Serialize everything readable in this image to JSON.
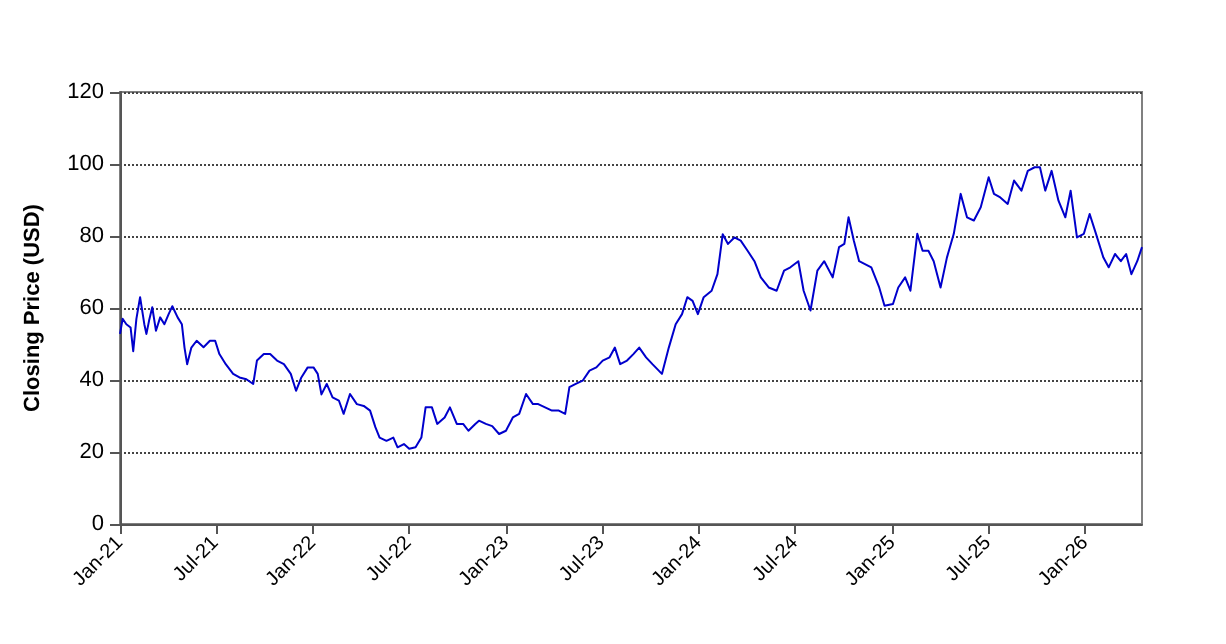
{
  "chart_data": {
    "type": "line",
    "ylabel": "Closing Price (USD)",
    "xlim": [
      "2021-01-01",
      "2026-04-18"
    ],
    "ylim": [
      0,
      120
    ],
    "yticks": [
      0,
      20,
      40,
      60,
      80,
      100,
      120
    ],
    "xticks": [
      {
        "value": "2021-01",
        "label": "Jan-21"
      },
      {
        "value": "2021-07",
        "label": "Jul-21"
      },
      {
        "value": "2022-01",
        "label": "Jan-22"
      },
      {
        "value": "2022-07",
        "label": "Jul-22"
      },
      {
        "value": "2023-01",
        "label": "Jan-23"
      },
      {
        "value": "2023-07",
        "label": "Jul-23"
      },
      {
        "value": "2024-01",
        "label": "Jan-24"
      },
      {
        "value": "2024-07",
        "label": "Jul-24"
      },
      {
        "value": "2025-01",
        "label": "Jan-25"
      },
      {
        "value": "2025-07",
        "label": "Jul-25"
      },
      {
        "value": "2026-01",
        "label": "Jan-26"
      }
    ],
    "grid": "y",
    "marker": "none",
    "line_style": "solid",
    "series": [
      {
        "color": "#0000cc",
        "x": [
          "2021-01-01",
          "2021-01-06",
          "2021-01-13",
          "2021-01-21",
          "2021-01-26",
          "2021-02-01",
          "2021-02-08",
          "2021-02-16",
          "2021-02-20",
          "2021-02-25",
          "2021-03-03",
          "2021-03-10",
          "2021-03-18",
          "2021-03-26",
          "2021-04-03",
          "2021-04-10",
          "2021-04-20",
          "2021-04-28",
          "2021-05-03",
          "2021-05-08",
          "2021-05-16",
          "2021-05-26",
          "2021-06-08",
          "2021-06-20",
          "2021-06-30",
          "2021-07-08",
          "2021-07-20",
          "2021-08-03",
          "2021-08-15",
          "2021-08-28",
          "2021-09-10",
          "2021-09-17",
          "2021-09-30",
          "2021-10-12",
          "2021-10-25",
          "2021-11-07",
          "2021-11-20",
          "2021-11-30",
          "2021-12-10",
          "2021-12-22",
          "2022-01-02",
          "2022-01-10",
          "2022-01-17",
          "2022-01-27",
          "2022-02-07",
          "2022-02-19",
          "2022-02-28",
          "2022-03-12",
          "2022-03-25",
          "2022-04-07",
          "2022-04-19",
          "2022-04-29",
          "2022-05-07",
          "2022-05-20",
          "2022-06-02",
          "2022-06-10",
          "2022-06-22",
          "2022-07-02",
          "2022-07-14",
          "2022-07-25",
          "2022-08-02",
          "2022-08-14",
          "2022-08-24",
          "2022-09-07",
          "2022-09-17",
          "2022-09-30",
          "2022-10-12",
          "2022-10-22",
          "2022-11-04",
          "2022-11-11",
          "2022-11-24",
          "2022-12-06",
          "2022-12-19",
          "2023-01-01",
          "2023-01-14",
          "2023-01-26",
          "2023-02-08",
          "2023-02-21",
          "2023-03-03",
          "2023-03-16",
          "2023-03-29",
          "2023-04-11",
          "2023-04-23",
          "2023-05-01",
          "2023-05-13",
          "2023-05-26",
          "2023-06-08",
          "2023-06-21",
          "2023-07-03",
          "2023-07-16",
          "2023-07-26",
          "2023-08-05",
          "2023-08-18",
          "2023-08-30",
          "2023-09-10",
          "2023-09-23",
          "2023-10-05",
          "2023-10-23",
          "2023-11-05",
          "2023-11-18",
          "2023-11-30",
          "2023-12-10",
          "2023-12-20",
          "2023-12-30",
          "2024-01-10",
          "2024-01-25",
          "2024-02-05",
          "2024-02-15",
          "2024-02-25",
          "2024-03-08",
          "2024-03-20",
          "2024-04-02",
          "2024-04-15",
          "2024-04-27",
          "2024-05-12",
          "2024-05-27",
          "2024-06-10",
          "2024-06-22",
          "2024-07-07",
          "2024-07-17",
          "2024-07-30",
          "2024-08-12",
          "2024-08-25",
          "2024-09-10",
          "2024-09-22",
          "2024-10-02",
          "2024-10-10",
          "2024-10-20",
          "2024-10-30",
          "2024-11-10",
          "2024-11-22",
          "2024-12-07",
          "2024-12-17",
          "2025-01-02",
          "2025-01-12",
          "2025-01-25",
          "2025-02-04",
          "2025-02-17",
          "2025-02-27",
          "2025-03-10",
          "2025-03-20",
          "2025-04-02",
          "2025-04-14",
          "2025-04-27",
          "2025-05-10",
          "2025-05-22",
          "2025-06-04",
          "2025-06-17",
          "2025-07-02",
          "2025-07-12",
          "2025-07-24",
          "2025-08-07",
          "2025-08-19",
          "2025-09-02",
          "2025-09-14",
          "2025-09-27",
          "2025-10-07",
          "2025-10-17",
          "2025-10-29",
          "2025-11-11",
          "2025-11-24",
          "2025-12-04",
          "2025-12-16",
          "2025-12-29",
          "2026-01-09",
          "2026-01-21",
          "2026-02-04",
          "2026-02-14",
          "2026-02-26",
          "2026-03-09",
          "2026-03-19",
          "2026-03-29",
          "2026-04-09",
          "2026-04-18"
        ],
        "values": [
          52.8,
          57,
          55.5,
          54.6,
          48,
          57,
          63,
          55.5,
          52.8,
          56.5,
          60.2,
          53.7,
          57.4,
          55.5,
          58.3,
          60.5,
          57.4,
          55.5,
          49,
          44.4,
          49,
          50.9,
          49.1,
          50.9,
          50.9,
          47.2,
          44.4,
          41.7,
          40.7,
          40.2,
          38.9,
          45.4,
          47.2,
          47.2,
          45.4,
          44.4,
          41.7,
          37,
          40.7,
          43.5,
          43.5,
          41.7,
          36,
          38.9,
          35.2,
          34.3,
          30.6,
          36.1,
          33.3,
          32.8,
          31.5,
          26.9,
          24,
          23.1,
          24,
          21.3,
          22.2,
          20.9,
          21.3,
          24,
          32.4,
          32.4,
          27.8,
          29.6,
          32.4,
          27.8,
          27.8,
          25.9,
          27.8,
          28.7,
          27.8,
          27.2,
          25,
          25.9,
          29.6,
          30.6,
          36.1,
          33.3,
          33.3,
          32.4,
          31.5,
          31.5,
          30.6,
          38,
          38.9,
          39.8,
          42.6,
          43.5,
          45.4,
          46.3,
          49,
          44.4,
          45.4,
          47.2,
          49,
          46.3,
          44.4,
          41.7,
          49,
          55.5,
          58.3,
          63,
          62,
          58.3,
          63,
          64.8,
          69.4,
          80.5,
          77.8,
          79.6,
          78.7,
          75.9,
          73,
          68.5,
          65.7,
          64.8,
          70.4,
          71.3,
          73,
          64.8,
          59.3,
          70.4,
          73,
          68.5,
          76.9,
          77.8,
          85.2,
          78.7,
          73,
          72.2,
          71.3,
          65.7,
          60.6,
          61.1,
          65.7,
          68.5,
          64.8,
          80.6,
          75.9,
          75.9,
          73,
          65.7,
          74,
          80.6,
          91.7,
          85.2,
          84.3,
          88,
          96.3,
          91.7,
          90.7,
          88.9,
          95.4,
          92.6,
          98.1,
          99.1,
          99.1,
          92.6,
          98.1,
          89.8,
          85.2,
          92.6,
          79.6,
          80.6,
          86.1,
          80.6,
          74,
          71.3,
          75,
          73,
          75,
          69.4,
          73,
          76.9
        ]
      }
    ]
  }
}
